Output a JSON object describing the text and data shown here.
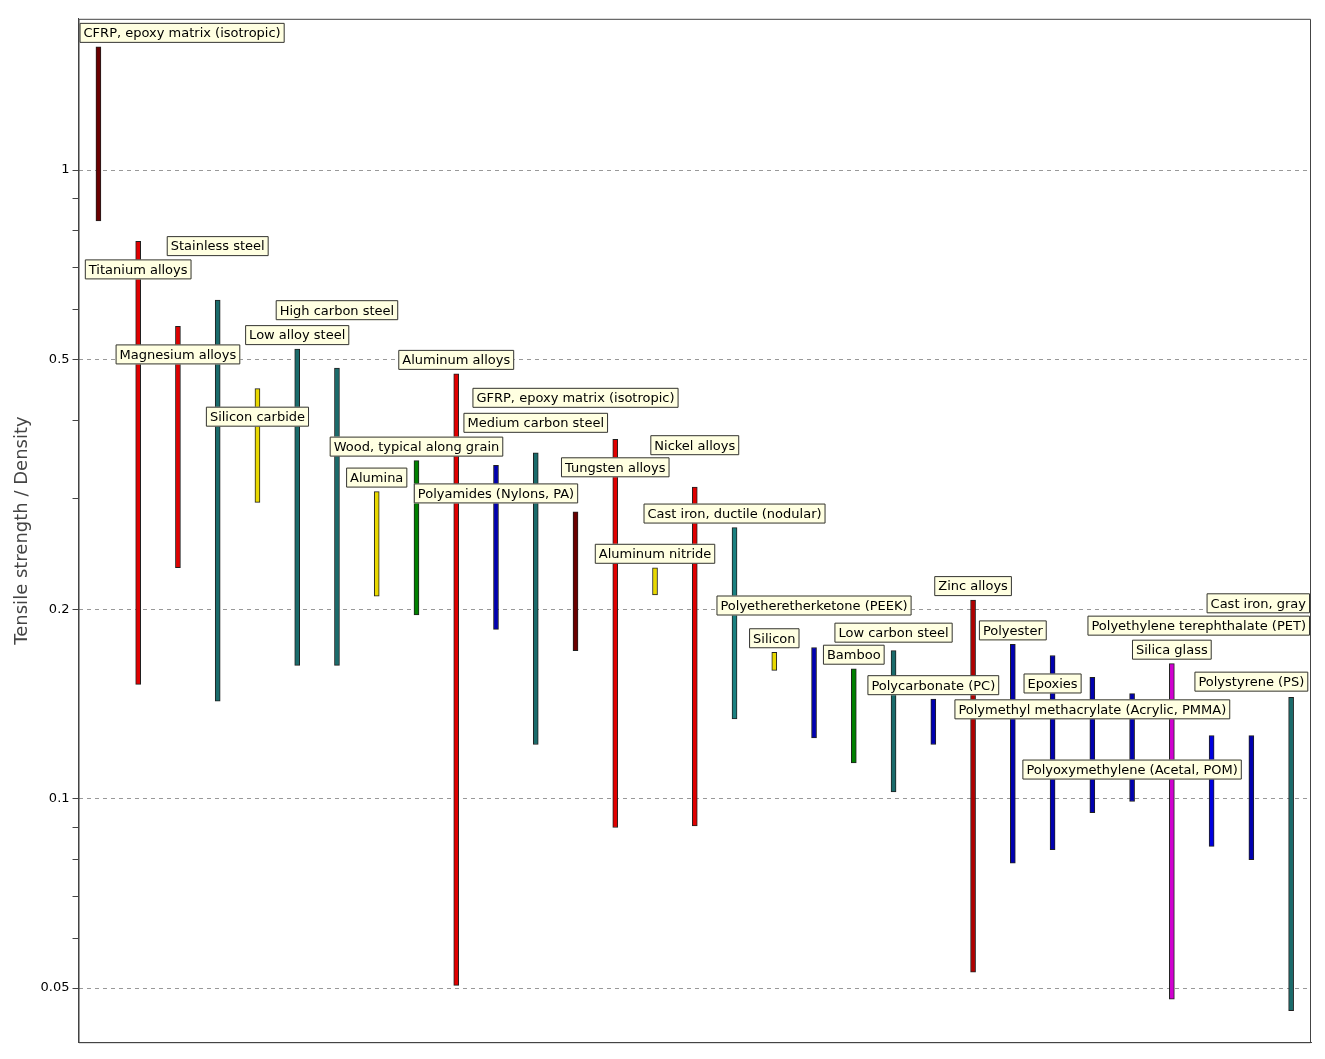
{
  "chart_data": {
    "type": "bar",
    "ylabel": "Tensile strength / Density",
    "log": "y",
    "grid": "y",
    "tick_labels": "y",
    "categories": [
      null,
      null,
      null,
      null,
      null,
      null,
      null,
      null,
      null,
      null,
      null,
      null,
      null,
      null,
      null,
      null,
      null,
      null,
      null,
      null,
      null,
      null,
      null,
      null,
      null,
      null,
      null,
      null,
      null,
      null,
      null
    ],
    "annotations": [
      "CFRP, epoxy matrix (isotropic)",
      "Titanium alloys",
      "Magnesium alloys",
      "Stainless steel",
      "Silicon carbide",
      "Low alloy steel",
      "High carbon steel",
      "Alumina",
      "Wood, typical along grain",
      "Aluminum alloys",
      "Polyamides (Nylons, PA)",
      "Medium carbon steel",
      "GFRP, epoxy matrix (isotropic)",
      "Tungsten alloys",
      "Aluminum nitride",
      "Nickel alloys",
      "Cast iron, ductile (nodular)",
      "Silicon",
      "Polyetheretherketone (PEEK)",
      "Bamboo",
      "Low carbon steel",
      "Polycarbonate (PC)",
      "Zinc alloys",
      "Polyester",
      "Epoxies",
      "Polymethyl methacrylate (Acrylic, PMMA)",
      "Polyoxymethylene (Acetal, POM)",
      "Silica glass",
      "Polyethylene terephthalate (PET)",
      "Polystyrene (PS)",
      "Cast iron, gray"
    ],
    "base": [
      0.83,
      0.152,
      0.233,
      0.143,
      0.296,
      0.163,
      0.163,
      0.21,
      0.196,
      0.0505,
      0.186,
      0.122,
      0.172,
      0.09,
      0.211,
      0.0905,
      0.134,
      0.16,
      0.125,
      0.114,
      0.1025,
      0.122,
      0.053,
      0.079,
      0.083,
      0.095,
      0.099,
      0.048,
      0.084,
      0.08,
      0.046
    ],
    "values": [
      0.74,
      0.618,
      0.331,
      0.478,
      0.153,
      0.356,
      0.321,
      0.098,
      0.149,
      0.4235,
      0.153,
      0.233,
      0.114,
      0.283,
      0.022,
      0.2225,
      0.136,
      0.011,
      0.049,
      0.047,
      0.0695,
      0.022,
      0.154,
      0.097,
      0.086,
      0.061,
      0.048,
      0.116,
      0.042,
      0.046,
      0.099
    ],
    "colors": [
      "#6b0000",
      "#e00000",
      "#e00000",
      "#1a6b6b",
      "#e8d800",
      "#1a6b6b",
      "#1a6b6b",
      "#e8d800",
      "#008000",
      "#e00000",
      "#0000b0",
      "#1a6b6b",
      "#6b0000",
      "#e00000",
      "#e8d800",
      "#e00000",
      "#1a8080",
      "#e8d800",
      "#0000b0",
      "#008000",
      "#1a6b6b",
      "#0000b0",
      "#b00000",
      "#0000b0",
      "#0000b0",
      "#0000b0",
      "#0000b0",
      "#d000d0",
      "#0000e0",
      "#0000b0",
      "#1a6b6b"
    ],
    "ylim": [
      0.041,
      1.74
    ],
    "yticks": [
      0.05,
      {
        "value": 0.06,
        "label": null
      },
      {
        "value": 0.07,
        "label": null
      },
      {
        "value": 0.08,
        "label": null
      },
      {
        "value": 0.09,
        "label": null
      },
      0.1,
      0.2,
      {
        "value": 0.3,
        "label": null
      },
      {
        "value": 0.4,
        "label": null
      },
      0.5,
      {
        "value": 0.6,
        "label": null
      },
      {
        "value": 0.7,
        "label": null
      },
      {
        "value": 0.8,
        "label": null
      },
      {
        "value": 0.9,
        "label": null
      },
      1
    ]
  }
}
